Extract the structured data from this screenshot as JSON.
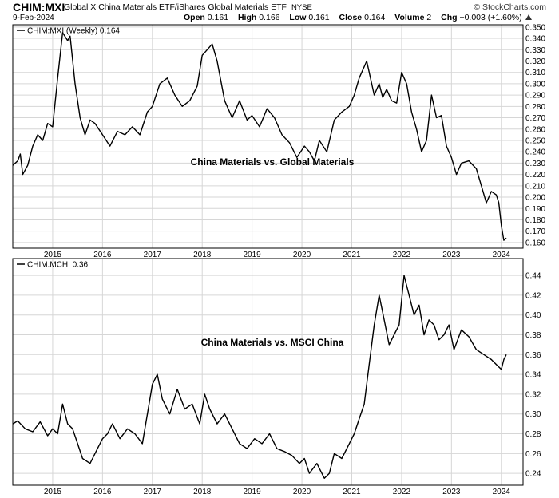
{
  "header": {
    "symbol": "CHIM:MXI",
    "description": "Global X China Materials ETF/iShares Global Materials ETF",
    "exchange": "NYSE",
    "brand": "© StockCharts.com",
    "date": "9-Feb-2024",
    "open_label": "Open",
    "open": "0.161",
    "high_label": "High",
    "high": "0.166",
    "low_label": "Low",
    "low": "0.161",
    "close_label": "Close",
    "close": "0.164",
    "volume_label": "Volume",
    "volume": "2",
    "chg_label": "Chg",
    "chg": "+0.003 (+1.60%)",
    "chg_icon": "up-triangle-icon"
  },
  "chart_data": [
    {
      "type": "line",
      "legend": "CHIM:MXI (Weekly) 0.164",
      "annotation": "China Materials vs. Global Materials",
      "x_start": 2014.2,
      "x_end": 2024.1,
      "x_ticks": [
        2015,
        2016,
        2017,
        2018,
        2019,
        2020,
        2021,
        2022,
        2023,
        2024
      ],
      "x_tick_labels": [
        "2015",
        "2016",
        "2017",
        "2018",
        "2019",
        "2020",
        "2021",
        "2022",
        "2023",
        "2024"
      ],
      "ylim": [
        0.155,
        0.352
      ],
      "y_ticks": [
        0.16,
        0.17,
        0.18,
        0.19,
        0.2,
        0.21,
        0.22,
        0.23,
        0.24,
        0.25,
        0.26,
        0.27,
        0.28,
        0.29,
        0.3,
        0.31,
        0.32,
        0.33,
        0.34,
        0.35
      ],
      "y_tick_labels": [
        "0.160",
        "0.170",
        "0.180",
        "0.190",
        "0.200",
        "0.210",
        "0.220",
        "0.230",
        "0.240",
        "0.250",
        "0.260",
        "0.270",
        "0.280",
        "0.290",
        "0.300",
        "0.310",
        "0.320",
        "0.330",
        "0.340",
        "0.350"
      ],
      "series": [
        {
          "name": "CHIM:MXI",
          "x": [
            2014.2,
            2014.3,
            2014.35,
            2014.4,
            2014.5,
            2014.6,
            2014.7,
            2014.8,
            2014.9,
            2015.0,
            2015.1,
            2015.2,
            2015.3,
            2015.35,
            2015.45,
            2015.55,
            2015.65,
            2015.75,
            2015.85,
            2016.0,
            2016.15,
            2016.3,
            2016.45,
            2016.6,
            2016.75,
            2016.9,
            2017.0,
            2017.15,
            2017.3,
            2017.45,
            2017.6,
            2017.75,
            2017.9,
            2018.0,
            2018.1,
            2018.2,
            2018.3,
            2018.45,
            2018.6,
            2018.75,
            2018.9,
            2019.0,
            2019.15,
            2019.3,
            2019.45,
            2019.6,
            2019.75,
            2019.9,
            2020.05,
            2020.15,
            2020.25,
            2020.35,
            2020.5,
            2020.65,
            2020.8,
            2020.95,
            2021.05,
            2021.15,
            2021.3,
            2021.45,
            2021.55,
            2021.62,
            2021.7,
            2021.8,
            2021.9,
            2022.0,
            2022.1,
            2022.2,
            2022.3,
            2022.4,
            2022.5,
            2022.6,
            2022.7,
            2022.8,
            2022.9,
            2023.0,
            2023.1,
            2023.2,
            2023.35,
            2023.5,
            2023.6,
            2023.7,
            2023.75,
            2023.8,
            2023.9,
            2023.95,
            2024.0,
            2024.05,
            2024.1
          ],
          "values": [
            0.228,
            0.232,
            0.238,
            0.22,
            0.228,
            0.245,
            0.255,
            0.25,
            0.265,
            0.262,
            0.305,
            0.345,
            0.338,
            0.342,
            0.3,
            0.27,
            0.255,
            0.268,
            0.265,
            0.255,
            0.245,
            0.258,
            0.255,
            0.262,
            0.255,
            0.275,
            0.28,
            0.3,
            0.305,
            0.29,
            0.28,
            0.285,
            0.298,
            0.325,
            0.33,
            0.335,
            0.32,
            0.285,
            0.27,
            0.285,
            0.268,
            0.272,
            0.262,
            0.278,
            0.27,
            0.255,
            0.248,
            0.235,
            0.245,
            0.24,
            0.232,
            0.25,
            0.24,
            0.268,
            0.275,
            0.28,
            0.29,
            0.305,
            0.32,
            0.29,
            0.3,
            0.288,
            0.295,
            0.285,
            0.283,
            0.31,
            0.3,
            0.275,
            0.26,
            0.24,
            0.25,
            0.29,
            0.27,
            0.272,
            0.245,
            0.235,
            0.22,
            0.23,
            0.232,
            0.225,
            0.21,
            0.195,
            0.2,
            0.205,
            0.202,
            0.195,
            0.175,
            0.162,
            0.164
          ]
        }
      ]
    },
    {
      "type": "line",
      "legend": "CHIM:MCHI 0.36",
      "annotation": "China Materials vs. MSCI China",
      "x_start": 2014.2,
      "x_end": 2024.1,
      "x_ticks": [
        2015,
        2016,
        2017,
        2018,
        2019,
        2020,
        2021,
        2022,
        2023,
        2024
      ],
      "x_tick_labels": [
        "2015",
        "2016",
        "2017",
        "2018",
        "2019",
        "2020",
        "2021",
        "2022",
        "2023",
        "2024"
      ],
      "ylim": [
        0.228,
        0.457
      ],
      "y_ticks": [
        0.24,
        0.26,
        0.28,
        0.3,
        0.32,
        0.34,
        0.36,
        0.38,
        0.4,
        0.42,
        0.44
      ],
      "y_tick_labels": [
        "0.24",
        "0.26",
        "0.28",
        "0.30",
        "0.32",
        "0.34",
        "0.36",
        "0.38",
        "0.40",
        "0.42",
        "0.44"
      ],
      "series": [
        {
          "name": "CHIM:MCHI",
          "x": [
            2014.2,
            2014.3,
            2014.45,
            2014.6,
            2014.75,
            2014.9,
            2015.0,
            2015.1,
            2015.2,
            2015.3,
            2015.4,
            2015.5,
            2015.6,
            2015.75,
            2015.9,
            2016.0,
            2016.1,
            2016.2,
            2016.35,
            2016.5,
            2016.65,
            2016.8,
            2016.95,
            2017.0,
            2017.1,
            2017.2,
            2017.35,
            2017.5,
            2017.65,
            2017.8,
            2017.95,
            2018.05,
            2018.15,
            2018.3,
            2018.45,
            2018.6,
            2018.75,
            2018.9,
            2019.05,
            2019.2,
            2019.35,
            2019.5,
            2019.65,
            2019.8,
            2019.95,
            2020.05,
            2020.15,
            2020.3,
            2020.45,
            2020.55,
            2020.65,
            2020.8,
            2020.95,
            2021.05,
            2021.15,
            2021.25,
            2021.35,
            2021.45,
            2021.55,
            2021.65,
            2021.75,
            2021.85,
            2021.95,
            2022.05,
            2022.15,
            2022.25,
            2022.35,
            2022.45,
            2022.55,
            2022.65,
            2022.75,
            2022.85,
            2022.95,
            2023.05,
            2023.2,
            2023.35,
            2023.5,
            2023.65,
            2023.8,
            2023.9,
            2024.0,
            2024.05,
            2024.1
          ],
          "values": [
            0.29,
            0.293,
            0.285,
            0.282,
            0.292,
            0.278,
            0.285,
            0.28,
            0.31,
            0.29,
            0.285,
            0.27,
            0.255,
            0.25,
            0.265,
            0.275,
            0.28,
            0.29,
            0.275,
            0.285,
            0.28,
            0.27,
            0.315,
            0.33,
            0.34,
            0.315,
            0.3,
            0.325,
            0.305,
            0.31,
            0.29,
            0.32,
            0.305,
            0.29,
            0.3,
            0.285,
            0.27,
            0.265,
            0.275,
            0.27,
            0.28,
            0.265,
            0.262,
            0.258,
            0.25,
            0.255,
            0.24,
            0.25,
            0.235,
            0.24,
            0.26,
            0.255,
            0.27,
            0.28,
            0.295,
            0.31,
            0.35,
            0.39,
            0.42,
            0.395,
            0.37,
            0.38,
            0.39,
            0.44,
            0.42,
            0.4,
            0.41,
            0.38,
            0.395,
            0.39,
            0.375,
            0.38,
            0.39,
            0.365,
            0.385,
            0.378,
            0.365,
            0.36,
            0.355,
            0.35,
            0.345,
            0.355,
            0.36
          ]
        }
      ]
    }
  ]
}
